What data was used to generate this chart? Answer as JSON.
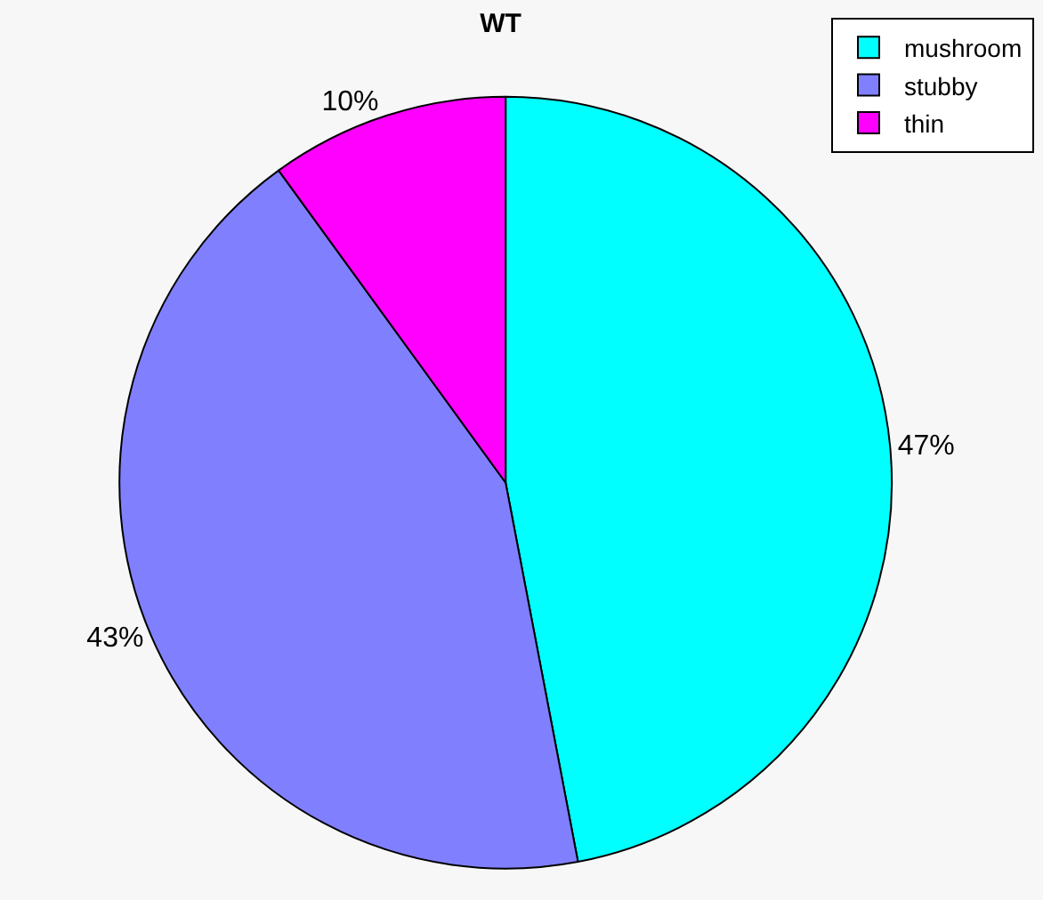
{
  "chart_data": {
    "type": "pie",
    "title": "WT",
    "categories": [
      "mushroom",
      "stubby",
      "thin"
    ],
    "values": [
      47,
      43,
      10
    ],
    "value_labels": [
      "47%",
      "43%",
      "10%"
    ],
    "colors": [
      "#00ffff",
      "#8080ff",
      "#ff00ff"
    ],
    "legend": "top right"
  }
}
